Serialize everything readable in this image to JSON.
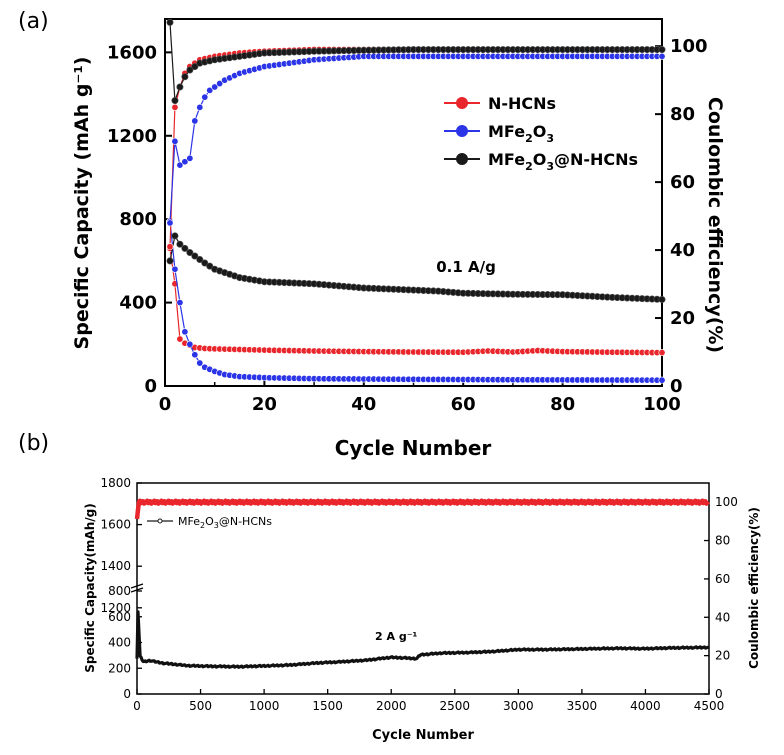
{
  "chart_data": [
    {
      "panel_label": "(a)",
      "type": "scatter",
      "xlabel": "Cycle Number",
      "ylabel_left": "Specific Capacity (mAh g⁻¹)",
      "ylabel_right": "Coulombic efficiency(%)",
      "xlim": [
        0,
        100
      ],
      "ylim_left": [
        0,
        1760
      ],
      "ylim_right": [
        0,
        108
      ],
      "xticks": [
        0,
        20,
        40,
        60,
        80,
        100
      ],
      "yticks_left": [
        0,
        400,
        800,
        1200,
        1600
      ],
      "yticks_right": [
        0,
        20,
        40,
        60,
        80,
        100
      ],
      "annotation": "0.1 A/g",
      "legend": {
        "placement": "right",
        "entries": [
          {
            "name": "N-HCNs",
            "sub_html": "N-HCNs",
            "color": "#e8262b"
          },
          {
            "name": "MFe2O3",
            "sub_html": "MFe<tspan font-size='11' dy='5'>2</tspan><tspan dy='-5'>O</tspan><tspan font-size='11' dy='5'>3</tspan>",
            "color": "#2b34e6"
          },
          {
            "name": "MFe2O3@N-HCNs",
            "sub_html": "MFe<tspan font-size='11' dy='5'>2</tspan><tspan dy='-5'>O</tspan><tspan font-size='11' dy='5'>3</tspan><tspan dy='-5'>@N-HCNs</tspan>",
            "color": "#1a1a1a"
          }
        ]
      },
      "series": [
        {
          "name": "N-HCNs capacity",
          "axis": "left",
          "color": "#e8262b",
          "points": [
            [
              1,
              660
            ],
            [
              2,
              490
            ],
            [
              3,
              225
            ],
            [
              4,
              205
            ],
            [
              5,
              195
            ],
            [
              6,
              185
            ],
            [
              8,
              180
            ],
            [
              10,
              178
            ],
            [
              15,
              175
            ],
            [
              20,
              172
            ],
            [
              30,
              168
            ],
            [
              40,
              165
            ],
            [
              50,
              163
            ],
            [
              60,
              162
            ],
            [
              65,
              168
            ],
            [
              70,
              163
            ],
            [
              75,
              170
            ],
            [
              80,
              165
            ],
            [
              90,
              162
            ],
            [
              100,
              160
            ]
          ]
        },
        {
          "name": "MFe2O3 capacity",
          "axis": "left",
          "color": "#2b34e6",
          "points": [
            [
              1,
              790
            ],
            [
              2,
              560
            ],
            [
              3,
              400
            ],
            [
              4,
              260
            ],
            [
              5,
              200
            ],
            [
              6,
              150
            ],
            [
              7,
              110
            ],
            [
              8,
              90
            ],
            [
              10,
              70
            ],
            [
              12,
              55
            ],
            [
              15,
              45
            ],
            [
              20,
              40
            ],
            [
              30,
              35
            ],
            [
              50,
              32
            ],
            [
              70,
              30
            ],
            [
              100,
              28
            ]
          ]
        },
        {
          "name": "MFe2O3@N-HCNs capacity",
          "axis": "left",
          "color": "#1a1a1a",
          "points": [
            [
              1,
              600
            ],
            [
              2,
              720
            ],
            [
              3,
              680
            ],
            [
              5,
              640
            ],
            [
              8,
              590
            ],
            [
              10,
              560
            ],
            [
              15,
              520
            ],
            [
              20,
              500
            ],
            [
              30,
              490
            ],
            [
              40,
              470
            ],
            [
              50,
              460
            ],
            [
              55,
              455
            ],
            [
              60,
              445
            ],
            [
              70,
              440
            ],
            [
              80,
              438
            ],
            [
              90,
              425
            ],
            [
              100,
              415
            ]
          ]
        },
        {
          "name": "N-HCNs CE",
          "axis": "right",
          "color": "#e8262b",
          "points": [
            [
              1,
              41
            ],
            [
              2,
              82
            ],
            [
              3,
              88
            ],
            [
              4,
              92
            ],
            [
              5,
              94
            ],
            [
              7,
              96
            ],
            [
              10,
              97
            ],
            [
              15,
              98
            ],
            [
              20,
              98.5
            ],
            [
              30,
              99
            ],
            [
              40,
              99
            ],
            [
              50,
              99
            ],
            [
              60,
              99
            ],
            [
              70,
              99
            ],
            [
              80,
              99
            ],
            [
              90,
              99
            ],
            [
              100,
              99
            ]
          ]
        },
        {
          "name": "MFe2O3 CE",
          "axis": "right",
          "color": "#2b34e6",
          "points": [
            [
              1,
              48
            ],
            [
              2,
              72
            ],
            [
              3,
              65
            ],
            [
              4,
              66
            ],
            [
              5,
              67
            ],
            [
              6,
              78
            ],
            [
              7,
              82
            ],
            [
              8,
              85
            ],
            [
              9,
              87
            ],
            [
              10,
              88
            ],
            [
              12,
              90
            ],
            [
              15,
              92
            ],
            [
              20,
              94
            ],
            [
              30,
              96
            ],
            [
              40,
              97
            ],
            [
              50,
              97
            ],
            [
              60,
              97
            ],
            [
              70,
              97
            ],
            [
              80,
              97
            ],
            [
              90,
              97
            ],
            [
              100,
              97
            ]
          ]
        },
        {
          "name": "MFe2O3@N-HCNs CE",
          "axis": "right",
          "color": "#1a1a1a",
          "points": [
            [
              1,
              107
            ],
            [
              2,
              84
            ],
            [
              3,
              88
            ],
            [
              4,
              91
            ],
            [
              5,
              93
            ],
            [
              7,
              95
            ],
            [
              10,
              96
            ],
            [
              15,
              97
            ],
            [
              20,
              98
            ],
            [
              30,
              98.5
            ],
            [
              40,
              98.8
            ],
            [
              50,
              99
            ],
            [
              60,
              99
            ],
            [
              70,
              99
            ],
            [
              80,
              99
            ],
            [
              90,
              99
            ],
            [
              100,
              99
            ]
          ]
        }
      ]
    },
    {
      "panel_label": "(b)",
      "type": "line",
      "xlabel": "Cycle Number",
      "ylabel_left": "Specific Capacity(mAh/g)",
      "ylabel_right": "Coulombic efficiency(%)",
      "xlim": [
        0,
        4500
      ],
      "ylim_left_lower": [
        0,
        800
      ],
      "ylim_left_upper": [
        1300,
        1800
      ],
      "ylim_right": [
        0,
        110
      ],
      "xticks": [
        0,
        500,
        1000,
        1500,
        2000,
        2500,
        3000,
        3500,
        4000,
        4500
      ],
      "yticks_left": [
        0,
        200,
        400,
        600,
        800,
        1200,
        1400,
        1600,
        1800
      ],
      "yticks_right": [
        0,
        20,
        40,
        60,
        80,
        100
      ],
      "annotation": "2 A g⁻¹",
      "annotation_x": 2000,
      "annotation_y": 450,
      "legend": {
        "placement": "top-left",
        "entries": [
          {
            "name": "MFe2O3@N-HCNs",
            "color": "#1a1a1a"
          }
        ]
      },
      "series": [
        {
          "name": "MFe2O3@N-HCNs capacity",
          "axis": "left",
          "color": "#111111",
          "points": [
            [
              0,
              280
            ],
            [
              10,
              730
            ],
            [
              20,
              300
            ],
            [
              50,
              250
            ],
            [
              100,
              260
            ],
            [
              200,
              240
            ],
            [
              400,
              220
            ],
            [
              600,
              215
            ],
            [
              800,
              212
            ],
            [
              1000,
              218
            ],
            [
              1200,
              225
            ],
            [
              1400,
              240
            ],
            [
              1600,
              250
            ],
            [
              1800,
              262
            ],
            [
              2000,
              285
            ],
            [
              2200,
              275
            ],
            [
              2230,
              305
            ],
            [
              2400,
              318
            ],
            [
              2600,
              322
            ],
            [
              2800,
              330
            ],
            [
              3000,
              345
            ],
            [
              3200,
              345
            ],
            [
              3400,
              348
            ],
            [
              3600,
              352
            ],
            [
              3800,
              355
            ],
            [
              4000,
              352
            ],
            [
              4200,
              358
            ],
            [
              4500,
              362
            ]
          ]
        },
        {
          "name": "MFe2O3@N-HCNs CE",
          "axis": "right",
          "color": "#e8262b",
          "points": [
            [
              0,
              92
            ],
            [
              15,
              100
            ],
            [
              500,
              100
            ],
            [
              1000,
              100
            ],
            [
              1500,
              100
            ],
            [
              2000,
              100
            ],
            [
              2500,
              100
            ],
            [
              3000,
              100
            ],
            [
              3500,
              100
            ],
            [
              4000,
              100
            ],
            [
              4500,
              100
            ]
          ]
        }
      ]
    }
  ]
}
